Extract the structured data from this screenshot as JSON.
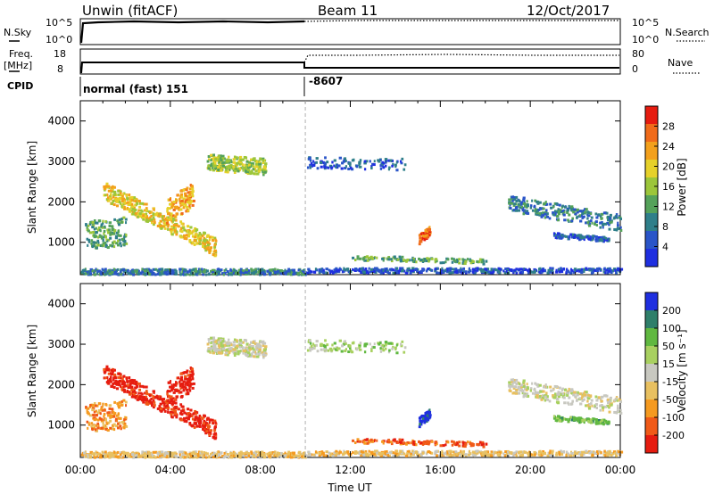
{
  "header": {
    "station": "Unwin (fitACF)",
    "beam": "Beam 11",
    "date": "12/Oct/2017"
  },
  "panels": {
    "nsky_label": "N.Sky",
    "nsearch_label": "N.Search",
    "freq_label": "Freq.",
    "freq_unit": "[MHz]",
    "nave_label": "Nave",
    "cpid_label": "CPID",
    "cpid_1": "normal (fast) 151",
    "cpid_2": "-8607",
    "nsky_ticks": [
      "10^5",
      "10^0"
    ],
    "freq_ticks": [
      "18",
      "8"
    ],
    "nave_ticks": [
      "80",
      "0"
    ]
  },
  "colors": {
    "scale_power": [
      "#1f2fe0",
      "#2a55c8",
      "#2f7f8a",
      "#55a25a",
      "#9cc63a",
      "#e6d12a",
      "#f3a01c",
      "#f06b1a",
      "#e61c10"
    ],
    "scale_velocity": [
      "#e61c10",
      "#f05a18",
      "#f59a20",
      "#e8c060",
      "#c8c8c0",
      "#a8d060",
      "#60b840",
      "#2f7f6a",
      "#1f2fe0"
    ]
  },
  "chart_data": [
    {
      "type": "heatmap",
      "title": "",
      "ylabel": "Slant Range [km]",
      "yticks": [
        "1000",
        "2000",
        "3000",
        "4000"
      ],
      "ylim": [
        200,
        4500
      ],
      "colorbar_label": "Power [dB]",
      "colorbar_ticks": [
        "4",
        "8",
        "12",
        "16",
        "20",
        "24",
        "28"
      ],
      "clim": [
        0,
        30
      ]
    },
    {
      "type": "heatmap",
      "title": "",
      "xlabel": "Time UT",
      "xticks": [
        "00:00",
        "04:00",
        "08:00",
        "12:00",
        "16:00",
        "20:00",
        "00:00"
      ],
      "xlim_hours": [
        0,
        24
      ],
      "ylabel": "Slant Range [km]",
      "yticks": [
        "1000",
        "2000",
        "3000",
        "4000"
      ],
      "ylim": [
        200,
        4500
      ],
      "colorbar_label": "Velocity [m s⁻¹]",
      "colorbar_ticks": [
        "-200",
        "-100",
        "-50",
        "-15",
        "15",
        "50",
        "100",
        "200"
      ],
      "clim": [
        -250,
        250
      ]
    }
  ]
}
